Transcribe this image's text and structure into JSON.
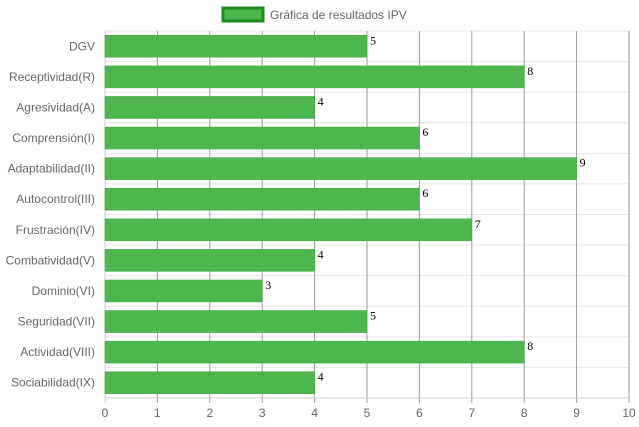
{
  "chart_data": {
    "type": "bar",
    "orientation": "horizontal",
    "categories": [
      "DGV",
      "Receptividad(R)",
      "Agresividad(A)",
      "Comprensión(I)",
      "Adaptabilidad(II)",
      "Autocontrol(III)",
      "Frustración(IV)",
      "Combatividad(V)",
      "Dominio(VI)",
      "Seguridad(VII)",
      "Actividad(VIII)",
      "Sociabilidad(IX)"
    ],
    "series": [
      {
        "name": "Gráfica de resultados IPV",
        "values": [
          5,
          8,
          4,
          6,
          9,
          6,
          7,
          4,
          3,
          5,
          8,
          4
        ],
        "color": "#4db64e",
        "border_color": "#1f8c1f"
      }
    ],
    "xlim": [
      0,
      10
    ],
    "x_ticks": [
      "0",
      "1",
      "2",
      "3",
      "4",
      "5",
      "6",
      "7",
      "8",
      "9",
      "10"
    ],
    "grid": true,
    "legend_position": "top",
    "data_labels": true,
    "colors": {
      "grid": "#e6e6e6",
      "grid_major": "#9a9a9a",
      "axis_text": "#666666"
    }
  }
}
